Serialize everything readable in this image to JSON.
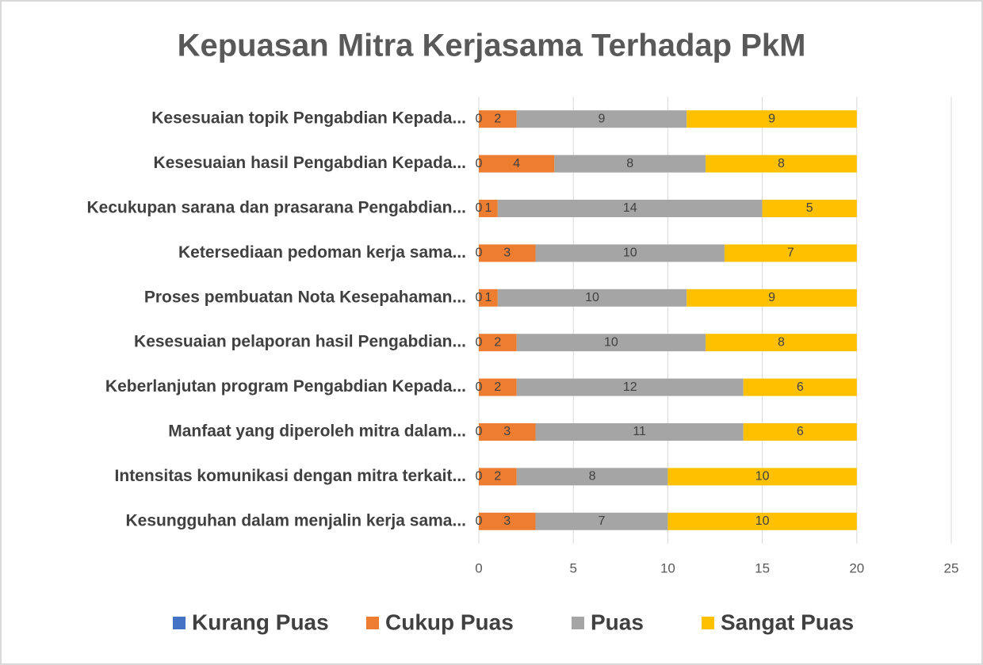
{
  "chart_data": {
    "type": "stacked-barh",
    "title": "Kepuasan Mitra Kerjasama Terhadap PkM",
    "categories": [
      "Kesesuaian topik Pengabdian Kepada...",
      "Kesesuaian hasil Pengabdian Kepada...",
      "Kecukupan sarana dan prasarana Pengabdian...",
      "Ketersediaan pedoman kerja sama...",
      "Proses pembuatan Nota Kesepahaman...",
      "Kesesuaian pelaporan hasil Pengabdian...",
      "Keberlanjutan program Pengabdian Kepada...",
      "Manfaat yang diperoleh mitra dalam...",
      "Intensitas komunikasi dengan mitra terkait...",
      "Kesungguhan dalam menjalin kerja sama..."
    ],
    "series": [
      {
        "name": "Kurang Puas",
        "color": "#4472c4",
        "values": [
          0,
          0,
          0,
          0,
          0,
          0,
          0,
          0,
          0,
          0
        ]
      },
      {
        "name": "Cukup Puas",
        "color": "#ed7d31",
        "values": [
          2,
          4,
          1,
          3,
          1,
          2,
          2,
          3,
          2,
          3
        ]
      },
      {
        "name": "Puas",
        "color": "#a5a5a5",
        "values": [
          9,
          8,
          14,
          10,
          10,
          10,
          12,
          11,
          8,
          7
        ]
      },
      {
        "name": "Sangat Puas",
        "color": "#ffc000",
        "values": [
          9,
          8,
          5,
          7,
          9,
          8,
          6,
          6,
          10,
          10
        ]
      }
    ],
    "xlim": [
      0,
      25
    ],
    "xticks": [
      0,
      5,
      10,
      15,
      20,
      25
    ],
    "grid": true,
    "legend": "bottom"
  }
}
